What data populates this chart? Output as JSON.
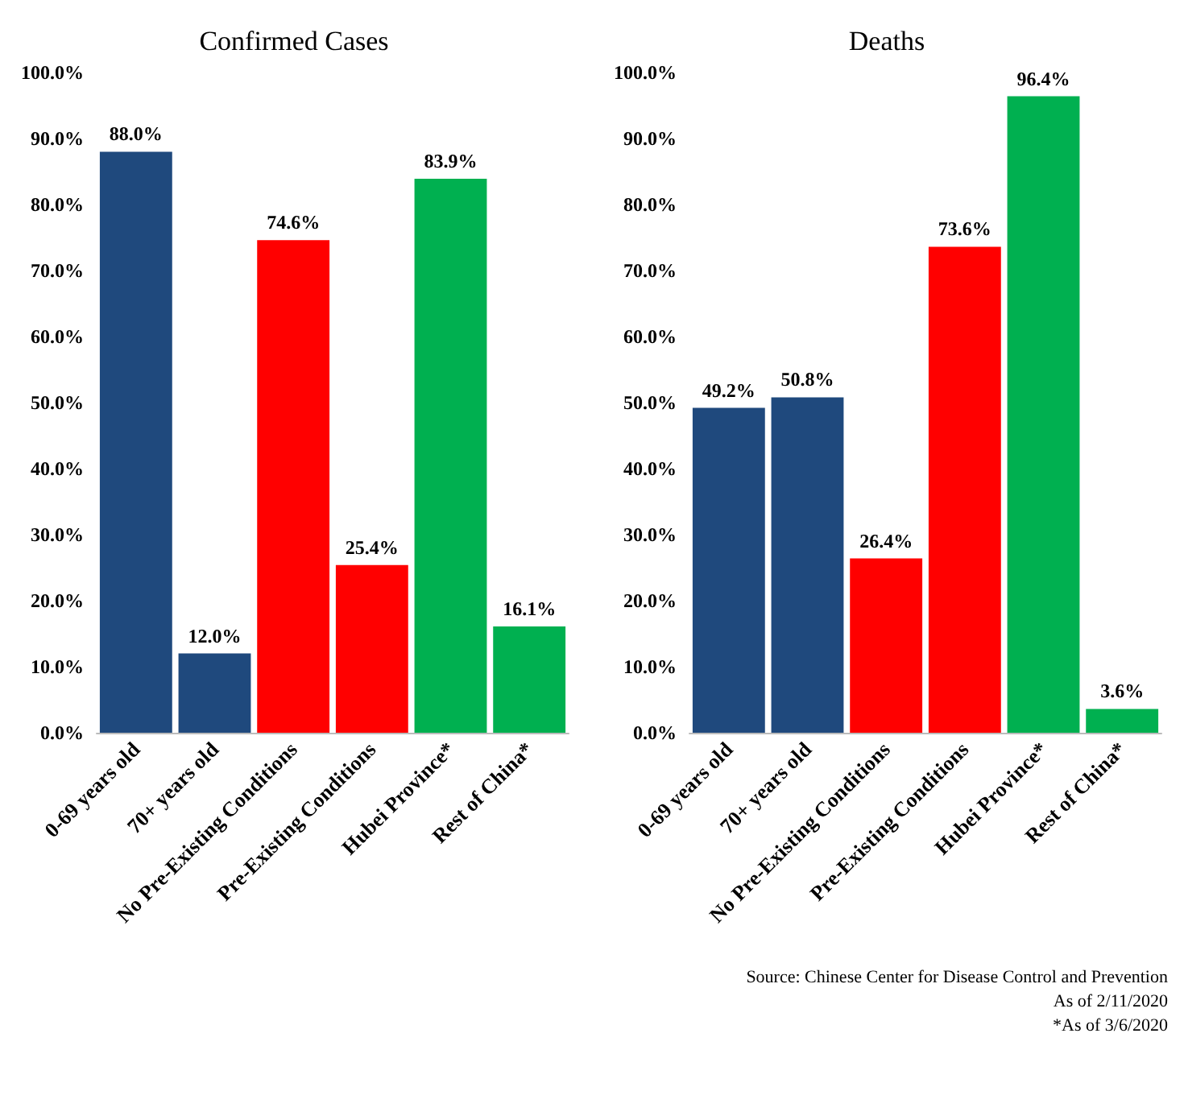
{
  "chart_data": [
    {
      "type": "bar",
      "title": "Confirmed Cases",
      "categories": [
        "0-69 years old",
        "70+ years old",
        "No Pre-Existing Conditions",
        "Pre-Existing Conditions",
        "Hubei Province*",
        "Rest of China*"
      ],
      "values": [
        88.0,
        12.0,
        74.6,
        25.4,
        83.9,
        16.1
      ],
      "colors": [
        "#1f497d",
        "#1f497d",
        "#ff0000",
        "#ff0000",
        "#00b050",
        "#00b050"
      ],
      "value_labels": [
        "88.0%",
        "12.0%",
        "74.6%",
        "25.4%",
        "83.9%",
        "16.1%"
      ],
      "ylim": [
        0,
        100
      ],
      "yticks": [
        {
          "value": 0,
          "label": "0.0%"
        },
        {
          "value": 10,
          "label": "10.0%"
        },
        {
          "value": 20,
          "label": "20.0%"
        },
        {
          "value": 30,
          "label": "30.0%"
        },
        {
          "value": 40,
          "label": "40.0%"
        },
        {
          "value": 50,
          "label": "50.0%"
        },
        {
          "value": 60,
          "label": "60.0%"
        },
        {
          "value": 70,
          "label": "70.0%"
        },
        {
          "value": 80,
          "label": "80.0%"
        },
        {
          "value": 90,
          "label": "90.0%"
        },
        {
          "value": 100,
          "label": "100.0%"
        }
      ]
    },
    {
      "type": "bar",
      "title": "Deaths",
      "categories": [
        "0-69 years old",
        "70+ years old",
        "No Pre-Existing Conditions",
        "Pre-Existing Conditions",
        "Hubei Province*",
        "Rest of China*"
      ],
      "values": [
        49.2,
        50.8,
        26.4,
        73.6,
        96.4,
        3.6
      ],
      "colors": [
        "#1f497d",
        "#1f497d",
        "#ff0000",
        "#ff0000",
        "#00b050",
        "#00b050"
      ],
      "value_labels": [
        "49.2%",
        "50.8%",
        "26.4%",
        "73.6%",
        "96.4%",
        "3.6%"
      ],
      "ylim": [
        0,
        100
      ],
      "yticks": [
        {
          "value": 0,
          "label": "0.0%"
        },
        {
          "value": 10,
          "label": "10.0%"
        },
        {
          "value": 20,
          "label": "20.0%"
        },
        {
          "value": 30,
          "label": "30.0%"
        },
        {
          "value": 40,
          "label": "40.0%"
        },
        {
          "value": 50,
          "label": "50.0%"
        },
        {
          "value": 60,
          "label": "60.0%"
        },
        {
          "value": 70,
          "label": "70.0%"
        },
        {
          "value": 80,
          "label": "80.0%"
        },
        {
          "value": 90,
          "label": "90.0%"
        },
        {
          "value": 100,
          "label": "100.0%"
        }
      ],
      "annotations": [
        "Source: Chinese Center for Disease Control and Prevention",
        "As of 2/11/2020",
        "*As of 3/6/2020"
      ]
    }
  ]
}
